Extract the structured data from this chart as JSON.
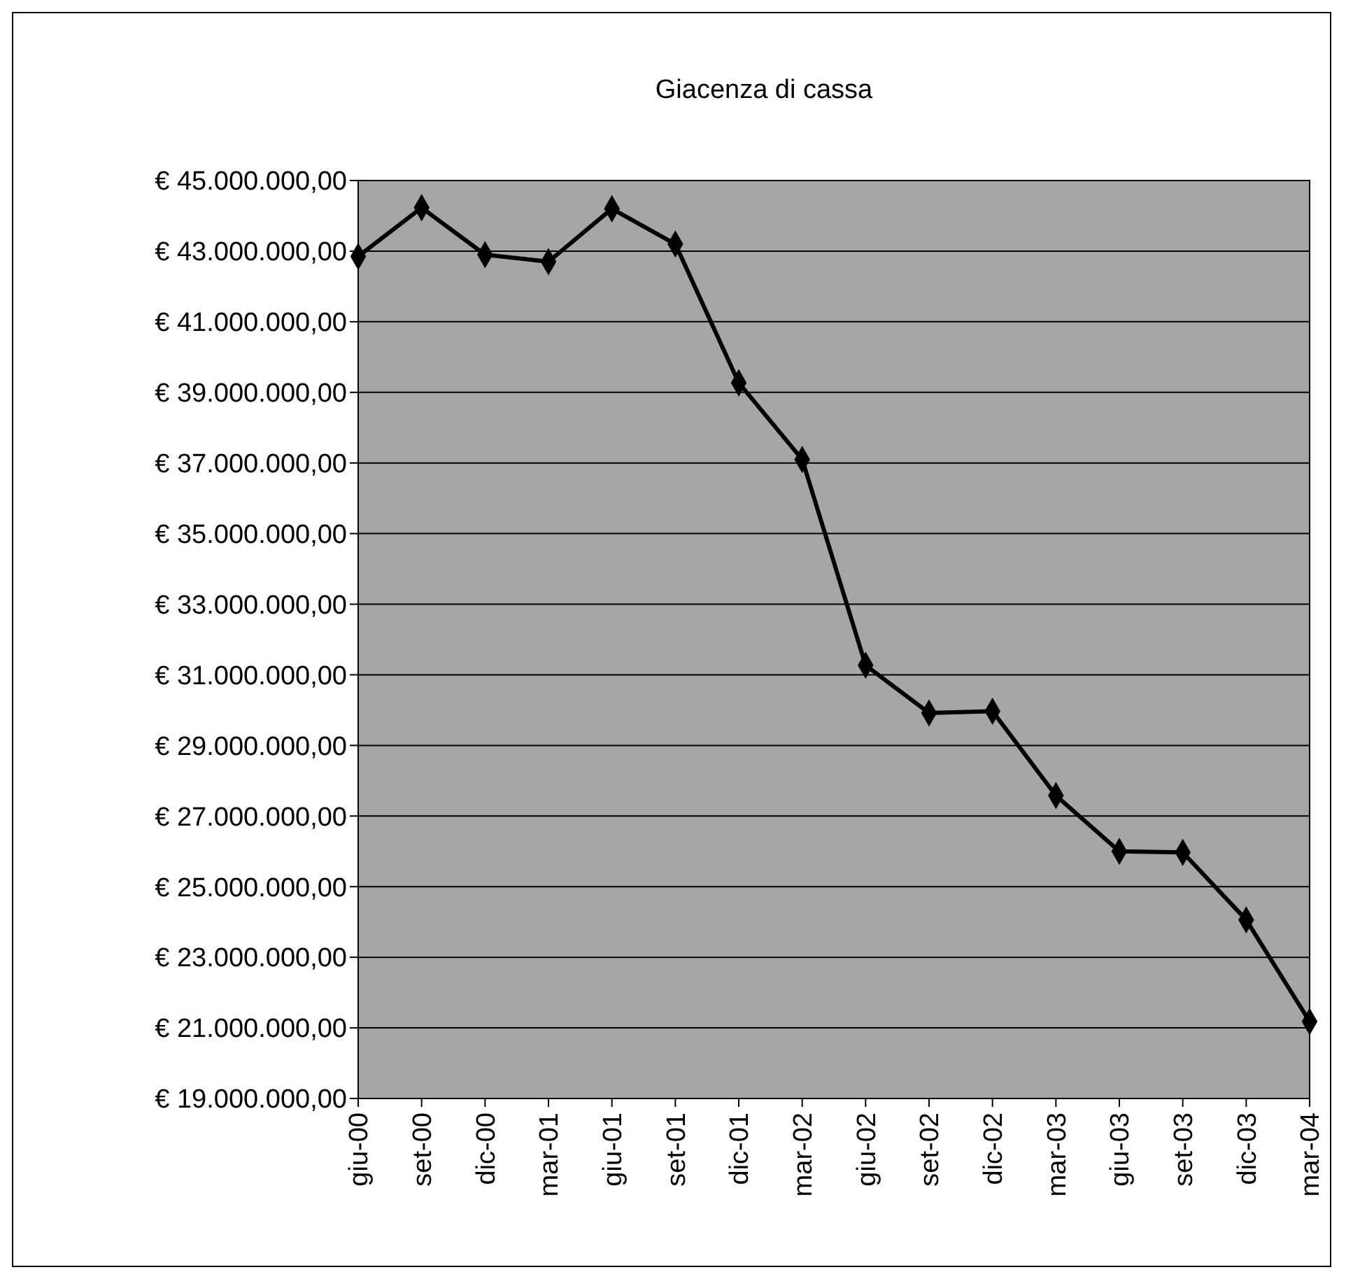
{
  "chart_data": {
    "type": "line",
    "title": "Giacenza di cassa",
    "categories": [
      "giu-00",
      "set-00",
      "dic-00",
      "mar-01",
      "giu-01",
      "set-01",
      "dic-01",
      "mar-02",
      "giu-02",
      "set-02",
      "dic-02",
      "mar-03",
      "giu-03",
      "set-03",
      "dic-03",
      "mar-04"
    ],
    "series": [
      {
        "color": "#000000",
        "values": [
          42850000,
          44230000,
          42900000,
          42700000,
          44200000,
          43200000,
          39270000,
          37100000,
          31270000,
          29920000,
          29970000,
          27580000,
          26000000,
          25970000,
          24060000,
          21180000
        ]
      }
    ],
    "ylim": [
      19000000,
      45000000
    ],
    "yticks": [
      {
        "value": 19000000,
        "label": "€ 19.000.000,00"
      },
      {
        "value": 21000000,
        "label": "€ 21.000.000,00"
      },
      {
        "value": 23000000,
        "label": "€ 23.000.000,00"
      },
      {
        "value": 25000000,
        "label": "€ 25.000.000,00"
      },
      {
        "value": 27000000,
        "label": "€ 27.000.000,00"
      },
      {
        "value": 29000000,
        "label": "€ 29.000.000,00"
      },
      {
        "value": 31000000,
        "label": "€ 31.000.000,00"
      },
      {
        "value": 33000000,
        "label": "€ 33.000.000,00"
      },
      {
        "value": 35000000,
        "label": "€ 35.000.000,00"
      },
      {
        "value": 37000000,
        "label": "€ 37.000.000,00"
      },
      {
        "value": 39000000,
        "label": "€ 39.000.000,00"
      },
      {
        "value": 41000000,
        "label": "€ 41.000.000,00"
      },
      {
        "value": 43000000,
        "label": "€ 43.000.000,00"
      },
      {
        "value": 45000000,
        "label": "€ 45.000.000,00"
      }
    ],
    "grid": "y",
    "marker": "diamond",
    "line_style": "solid"
  }
}
